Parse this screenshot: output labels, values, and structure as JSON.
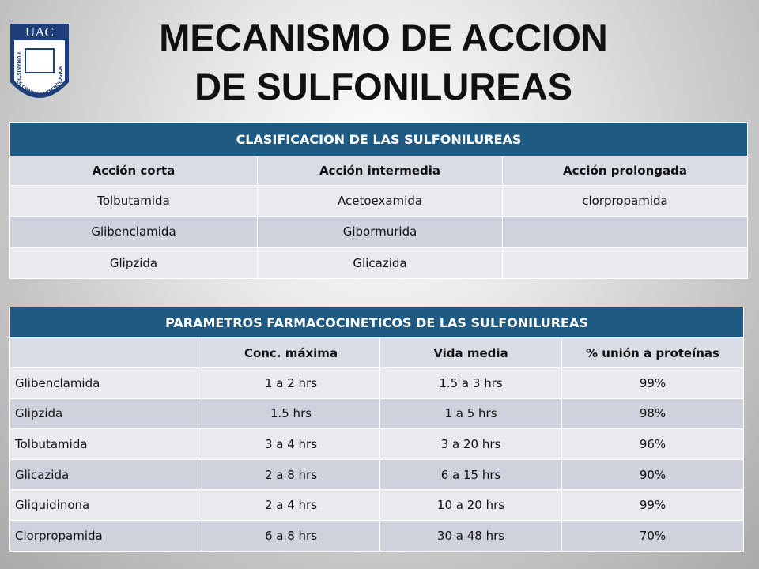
{
  "logo": {
    "acronym": "UAC",
    "motto": "HUMANISTICA CIENTIFICA TECNOLOGICA"
  },
  "title": [
    "MECANISMO DE ACCION",
    "DE SULFONILUREAS"
  ],
  "table1": {
    "title": "CLASIFICACION DE LAS SULFONILUREAS",
    "columns": [
      "Acción corta",
      "Acción intermedia",
      "Acción prolongada"
    ],
    "rows": [
      [
        "Tolbutamida",
        "Acetoexamida",
        "clorpropamida"
      ],
      [
        "Glibenclamida",
        "Gibormurida"
      ],
      [
        "Glipzida",
        "Glicazida"
      ]
    ]
  },
  "table2": {
    "title": "PARAMETROS FARMACOCINETICOS DE LAS SULFONILUREAS",
    "columns": [
      "Conc. máxima",
      "Vida media",
      "% unión a proteínas"
    ],
    "rows": [
      [
        "Glibenclamida",
        "1 a 2 hrs",
        "1.5 a 3 hrs",
        "99%"
      ],
      [
        "Glipzida",
        "1.5 hrs",
        "1 a 5 hrs",
        "98%"
      ],
      [
        "Tolbutamida",
        "3 a 4 hrs",
        "3 a 20 hrs",
        "96%"
      ],
      [
        "Glicazida",
        "2 a 8 hrs",
        "6 a 15 hrs",
        "90%"
      ],
      [
        "Gliquidinona",
        "2 a 4 hrs",
        "10 a 20 hrs",
        "99%"
      ],
      [
        "Clorpropamida",
        "6 a 8 hrs",
        "30 a 48 hrs",
        "70%"
      ]
    ]
  }
}
